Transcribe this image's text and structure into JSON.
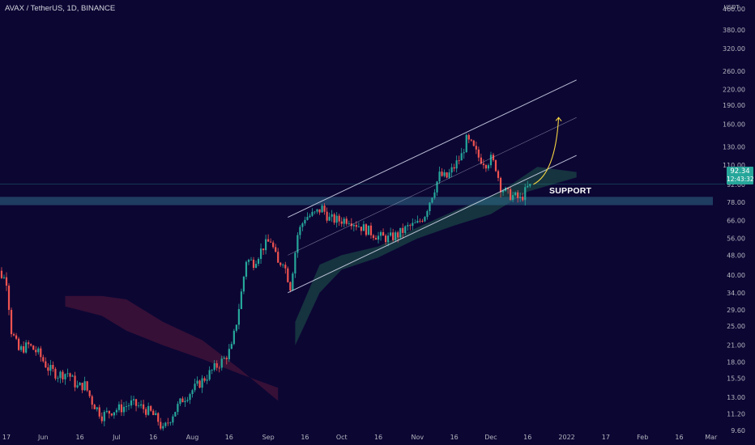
{
  "header": {
    "title": "AVAX / TetherUS, 1D, BINANCE"
  },
  "price_tag": {
    "price": "92.34",
    "countdown": "12:43:32"
  },
  "annotation": {
    "support_label": "SUPPORT"
  },
  "colors": {
    "background": "#0c0633",
    "bull": "#26a69a",
    "bear": "#ef5350",
    "channel": "#d7dcf0",
    "support_zone": "#2f6a86",
    "cloud_bull": "#1f5a4a",
    "cloud_bear": "#5a1a3a",
    "projection_arrow": "#f5d442"
  },
  "chart_data": {
    "type": "candlestick",
    "symbol": "AVAX / TetherUS",
    "timeframe": "1D",
    "exchange": "BINANCE",
    "y_axis": {
      "scale": "log",
      "unit": "USDT",
      "range": [
        8.4,
        500
      ],
      "ticks": [
        "9.60",
        "11.20",
        "13.00",
        "15.50",
        "18.00",
        "21.00",
        "25.00",
        "29.00",
        "34.00",
        "40.00",
        "48.00",
        "56.00",
        "66.00",
        "78.00",
        "92.00",
        "110.00",
        "130.00",
        "160.00",
        "190.00",
        "220.00",
        "260.00",
        "320.00",
        "380.00",
        "460.00"
      ]
    },
    "x_axis": {
      "ticks": [
        "17",
        "Jun",
        "16",
        "Jul",
        "16",
        "Aug",
        "16",
        "Sep",
        "16",
        "Oct",
        "16",
        "Nov",
        "16",
        "Dec",
        "16",
        "2022",
        "17",
        "Feb",
        "16",
        "Mar"
      ]
    },
    "last_price": 92.34,
    "support_zone": [
      76,
      82
    ],
    "price_line": 92.34,
    "channel": {
      "lower": {
        "start": [
          "Sep 9",
          34.0
        ],
        "end": [
          "Jan 5",
          120.0
        ]
      },
      "upper": {
        "start": [
          "Sep 9",
          68.0
        ],
        "end": [
          "Jan 5",
          240.0
        ]
      },
      "middle": {
        "start": [
          "Sep 9",
          48.0
        ],
        "end": [
          "Jan 5",
          170.0
        ]
      }
    },
    "projection": {
      "from": [
        "Dec 25",
        92
      ],
      "to": [
        "Jan 1",
        170
      ]
    },
    "price_path": [
      [
        "May 10",
        44
      ],
      [
        "May 13",
        42
      ],
      [
        "May 17",
        38
      ],
      [
        "May 19",
        24
      ],
      [
        "May 22",
        20
      ],
      [
        "May 26",
        21
      ],
      [
        "May 30",
        19.5
      ],
      [
        "Jun 3",
        17
      ],
      [
        "Jun 7",
        16
      ],
      [
        "Jun 11",
        16.3
      ],
      [
        "Jun 15",
        14.3
      ],
      [
        "Jun 18",
        14.6
      ],
      [
        "Jun 21",
        12.5
      ],
      [
        "Jun 25",
        11.0
      ],
      [
        "Jun 29",
        11.5
      ],
      [
        "Jul 3",
        11.8
      ],
      [
        "Jul 7",
        12.3
      ],
      [
        "Jul 11",
        11.9
      ],
      [
        "Jul 15",
        11.3
      ],
      [
        "Jul 18",
        10.5
      ],
      [
        "Jul 20",
        9.6
      ],
      [
        "Jul 24",
        11.2
      ],
      [
        "Jul 28",
        12.8
      ],
      [
        "Aug 2",
        14.2
      ],
      [
        "Aug 6",
        15.5
      ],
      [
        "Aug 10",
        17.0
      ],
      [
        "Aug 14",
        18.5
      ],
      [
        "Aug 17",
        20.5
      ],
      [
        "Aug 19",
        26.0
      ],
      [
        "Aug 21",
        34.0
      ],
      [
        "Aug 23",
        46.0
      ],
      [
        "Aug 26",
        45.0
      ],
      [
        "Aug 30",
        52.0
      ],
      [
        "Sep 2",
        55.0
      ],
      [
        "Sep 5",
        44.0
      ],
      [
        "Sep 7",
        46.0
      ],
      [
        "Sep 10",
        36.0
      ],
      [
        "Sep 13",
        58.0
      ],
      [
        "Sep 16",
        68.0
      ],
      [
        "Sep 20",
        70.0
      ],
      [
        "Sep 23",
        74.0
      ],
      [
        "Sep 26",
        67.0
      ],
      [
        "Sep 30",
        66.0
      ],
      [
        "Oct 4",
        67.0
      ],
      [
        "Oct 8",
        63.0
      ],
      [
        "Oct 12",
        60.0
      ],
      [
        "Oct 16",
        57.0
      ],
      [
        "Oct 20",
        56.0
      ],
      [
        "Oct 24",
        58.0
      ],
      [
        "Oct 28",
        62.0
      ],
      [
        "Nov 1",
        64.0
      ],
      [
        "Nov 4",
        70.0
      ],
      [
        "Nov 7",
        84.0
      ],
      [
        "Nov 10",
        100.0
      ],
      [
        "Nov 13",
        98.0
      ],
      [
        "Nov 16",
        108.0
      ],
      [
        "Nov 19",
        120.0
      ],
      [
        "Nov 21",
        138.0
      ],
      [
        "Nov 23",
        132.0
      ],
      [
        "Nov 26",
        118.0
      ],
      [
        "Nov 29",
        112.0
      ],
      [
        "Dec 1",
        116.0
      ],
      [
        "Dec 3",
        108.0
      ],
      [
        "Dec 5",
        90.0
      ],
      [
        "Dec 8",
        84.0
      ],
      [
        "Dec 11",
        82.0
      ],
      [
        "Dec 13",
        80.0
      ],
      [
        "Dec 15",
        86.0
      ],
      [
        "Dec 17",
        92.34
      ]
    ]
  }
}
